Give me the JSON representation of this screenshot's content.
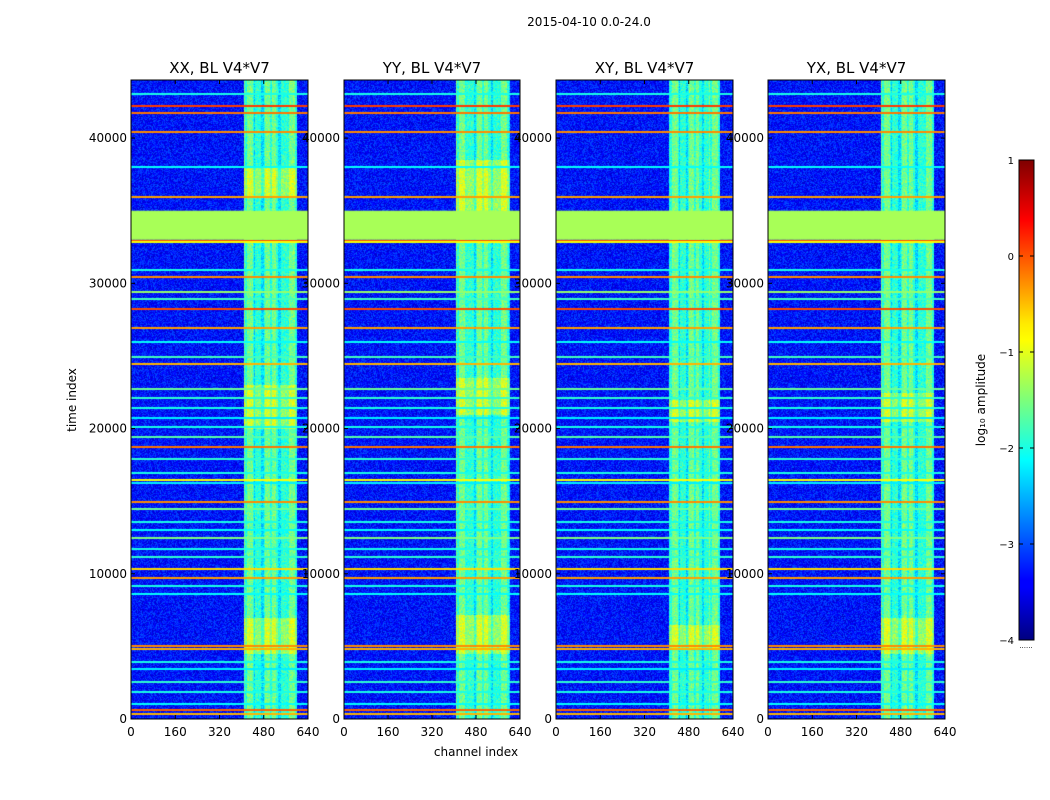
{
  "figure": {
    "suptitle": "2015-04-10 0.0-24.0"
  },
  "chart_data": {
    "type": "heatmap",
    "ylabel": "time index",
    "xlabel": "channel index",
    "xlim": [
      0,
      640
    ],
    "ylim": [
      0,
      44000
    ],
    "xticks": [
      "0",
      "160",
      "320",
      "480",
      "640"
    ],
    "yticks": [
      "0",
      "10000",
      "20000",
      "30000",
      "40000"
    ],
    "panels": [
      {
        "title": "XX, BL V4*V7",
        "band": [
          405,
          600
        ],
        "brightBursts": [
          [
            4500,
            7000
          ],
          [
            20000,
            23000
          ],
          [
            36000,
            38000
          ]
        ]
      },
      {
        "title": "YY, BL V4*V7",
        "band": [
          405,
          600
        ],
        "brightBursts": [
          [
            4500,
            7200
          ],
          [
            21000,
            23500
          ],
          [
            35000,
            38500
          ]
        ]
      },
      {
        "title": "XY, BL V4*V7",
        "band": [
          405,
          590
        ],
        "brightBursts": [
          [
            4800,
            6500
          ],
          [
            20500,
            22000
          ]
        ]
      },
      {
        "title": "YX, BL V4*V7",
        "band": [
          405,
          600
        ],
        "brightBursts": [
          [
            4500,
            7000
          ],
          [
            20500,
            22500
          ]
        ]
      }
    ],
    "flagged_band": [
      33000,
      35000
    ],
    "flagged_band_log10": -1.3,
    "background_log10": -3.3,
    "hlines": [
      {
        "y": 42300,
        "v": 0.1
      },
      {
        "y": 41800,
        "v": -0.2
      },
      {
        "y": 43100,
        "v": -2.0
      },
      {
        "y": 40500,
        "v": -0.3
      },
      {
        "y": 38100,
        "v": -2.1
      },
      {
        "y": 36000,
        "v": -0.4
      },
      {
        "y": 33000,
        "v": 0.0
      },
      {
        "y": 32900,
        "v": -0.9
      },
      {
        "y": 31000,
        "v": -2.0
      },
      {
        "y": 30500,
        "v": -0.3
      },
      {
        "y": 29500,
        "v": -1.4
      },
      {
        "y": 29000,
        "v": -1.8
      },
      {
        "y": 28300,
        "v": 0.0
      },
      {
        "y": 27000,
        "v": -0.4
      },
      {
        "y": 26000,
        "v": -2.1
      },
      {
        "y": 25000,
        "v": -1.8
      },
      {
        "y": 24500,
        "v": -0.5
      },
      {
        "y": 22800,
        "v": -1.6
      },
      {
        "y": 22200,
        "v": -1.9
      },
      {
        "y": 21500,
        "v": -2.0
      },
      {
        "y": 20800,
        "v": -2.2
      },
      {
        "y": 20200,
        "v": -2.0
      },
      {
        "y": 19500,
        "v": -1.7
      },
      {
        "y": 18800,
        "v": -0.2
      },
      {
        "y": 18000,
        "v": -1.9
      },
      {
        "y": 17000,
        "v": -2.0
      },
      {
        "y": 16500,
        "v": -0.9
      },
      {
        "y": 16300,
        "v": -2.2
      },
      {
        "y": 15000,
        "v": -0.3
      },
      {
        "y": 14500,
        "v": -1.6
      },
      {
        "y": 13600,
        "v": -2.0
      },
      {
        "y": 13100,
        "v": -2.1
      },
      {
        "y": 12500,
        "v": -1.5
      },
      {
        "y": 11800,
        "v": -2.0
      },
      {
        "y": 11200,
        "v": -1.9
      },
      {
        "y": 10400,
        "v": -0.7
      },
      {
        "y": 9800,
        "v": -0.4
      },
      {
        "y": 9200,
        "v": -2.0
      },
      {
        "y": 8700,
        "v": -2.1
      },
      {
        "y": 5100,
        "v": -0.3
      },
      {
        "y": 4900,
        "v": -0.5
      },
      {
        "y": 4000,
        "v": -2.0
      },
      {
        "y": 3500,
        "v": -2.2
      },
      {
        "y": 2600,
        "v": -1.9
      },
      {
        "y": 1900,
        "v": -2.0
      },
      {
        "y": 1100,
        "v": -2.1
      },
      {
        "y": 700,
        "v": -0.1
      },
      {
        "y": 400,
        "v": -0.5
      }
    ],
    "colorbar": {
      "label": "log₁₀ amplitude",
      "vmin": -4,
      "vmax": 1,
      "ticks": [
        "1",
        "0",
        "−1",
        "−2",
        "−3",
        "−4"
      ],
      "footnote": "......"
    }
  }
}
